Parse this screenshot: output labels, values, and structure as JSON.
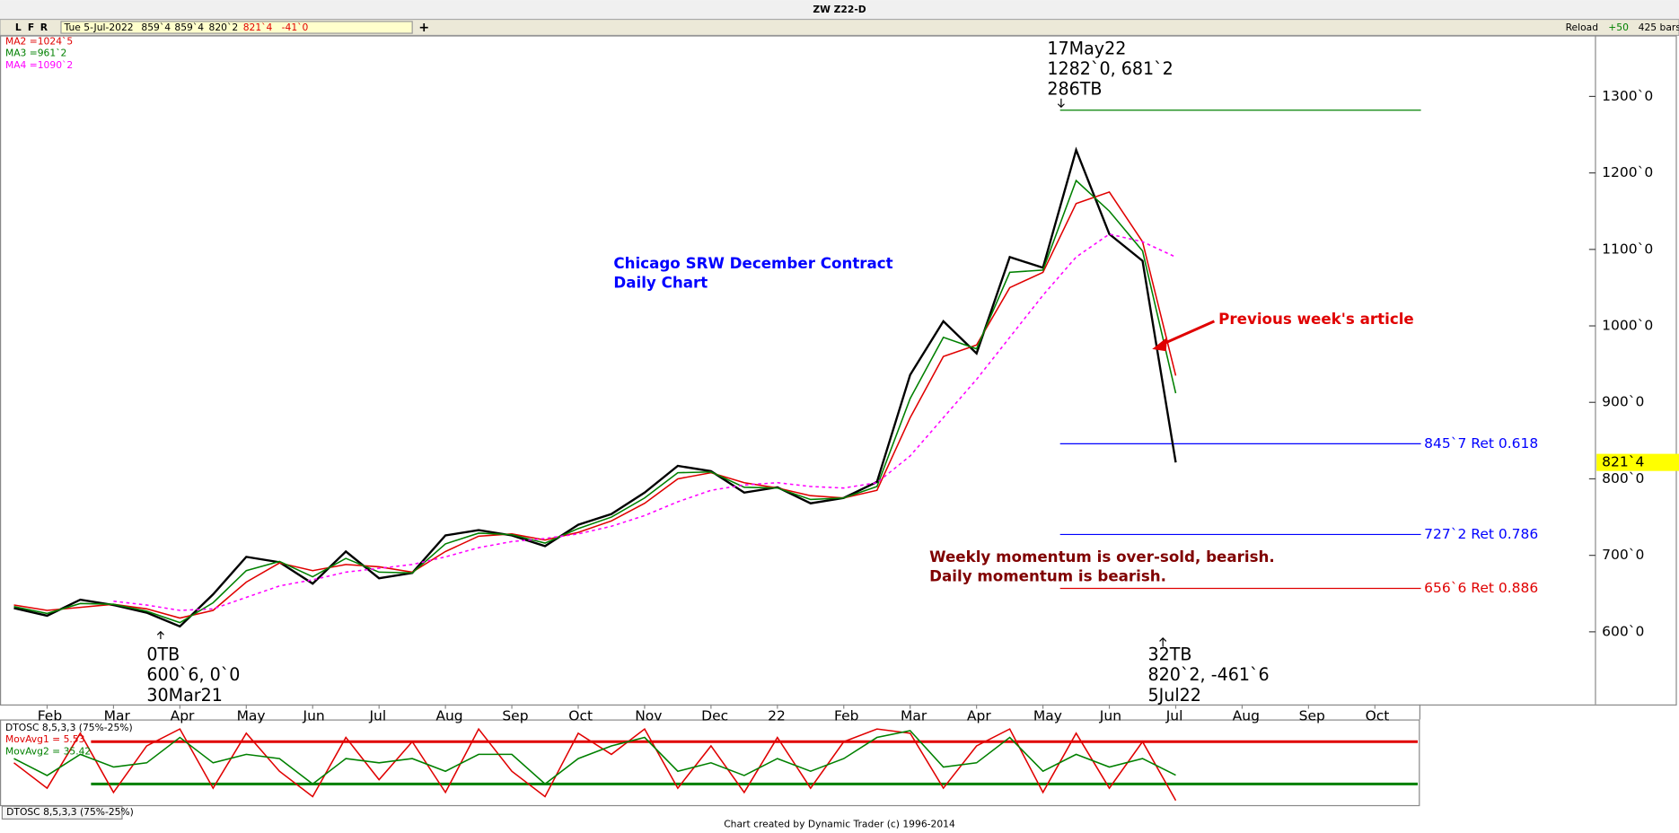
{
  "header": {
    "title": "ZW Z22-D",
    "buttons": [
      "L",
      "F",
      "R"
    ],
    "quote": [
      {
        "text": "Tue 5-Jul-2022",
        "color": "#000000"
      },
      {
        "text": "859`4",
        "color": "#000000"
      },
      {
        "text": "859`4",
        "color": "#000000"
      },
      {
        "text": "820`2",
        "color": "#000000"
      },
      {
        "text": "821`4",
        "color": "#e00000"
      },
      {
        "text": "-41`0",
        "color": "#e00000"
      }
    ],
    "add": "+",
    "reload": "Reload",
    "bars_step": "+50",
    "bars": "425 bars"
  },
  "chart_data": [
    {
      "type": "line",
      "categories": [
        null,
        "Feb",
        null,
        "Mar",
        null,
        "Apr",
        null,
        "May",
        null,
        "Jun",
        null,
        "Jul",
        null,
        "Aug",
        null,
        "Sep",
        null,
        "Oct",
        null,
        "Nov",
        null,
        "Dec",
        null,
        "22",
        null,
        "Feb",
        null,
        "Mar",
        null,
        "Apr",
        null,
        "May",
        null,
        "Jun",
        null,
        "Jul",
        null,
        "Aug",
        null,
        "Sep",
        null,
        "Oct",
        null
      ],
      "series": [
        {
          "color": "#000000",
          "values": [
            631,
            621,
            642,
            635,
            625,
            607,
            649,
            698,
            691,
            663,
            705,
            670,
            677,
            726,
            733,
            726,
            712,
            740,
            754,
            782,
            817,
            810,
            782,
            789,
            768,
            775,
            796,
            936,
            1006,
            964,
            1090,
            1076,
            1230,
            1120,
            1085,
            821.5,
            null,
            null,
            null,
            null,
            null,
            null,
            null
          ]
        },
        {
          "name": "MA2 =1024`5",
          "color": "#e00000",
          "values": [
            635,
            628,
            632,
            636,
            630,
            618,
            628,
            665,
            690,
            680,
            688,
            685,
            678,
            705,
            725,
            728,
            720,
            730,
            745,
            768,
            800,
            808,
            795,
            788,
            778,
            775,
            785,
            880,
            960,
            975,
            1050,
            1070,
            1160,
            1175,
            1110,
            935,
            null,
            null,
            null,
            null,
            null,
            null,
            null
          ]
        },
        {
          "name": "MA3 =961`2",
          "color": "#008000",
          "values": [
            633,
            624,
            637,
            636,
            627,
            612,
            638,
            680,
            692,
            672,
            696,
            678,
            677,
            715,
            729,
            727,
            716,
            735,
            750,
            775,
            808,
            809,
            789,
            788,
            773,
            775,
            790,
            905,
            985,
            970,
            1070,
            1073,
            1190,
            1150,
            1098,
            912,
            null,
            null,
            null,
            null,
            null,
            null,
            null
          ]
        },
        {
          "name": "MA4 =1090`2",
          "color": "#ff00ff",
          "dash": true,
          "values": [
            null,
            null,
            null,
            640,
            635,
            628,
            630,
            645,
            660,
            668,
            678,
            683,
            688,
            698,
            710,
            718,
            722,
            728,
            738,
            752,
            770,
            785,
            792,
            795,
            790,
            788,
            795,
            830,
            880,
            930,
            985,
            1040,
            1090,
            1120,
            1110,
            1090,
            null,
            null,
            null,
            null,
            null,
            null,
            null
          ]
        }
      ],
      "ylim": [
        505,
        1377
      ],
      "yticks": [
        {
          "value": 600,
          "label": "600`0"
        },
        {
          "value": 700,
          "label": "700`0"
        },
        {
          "value": 800,
          "label": "800`0"
        },
        {
          "value": 900,
          "label": "900`0"
        },
        {
          "value": 1000,
          "label": "1000`0"
        },
        {
          "value": 1100,
          "label": "1100`0"
        },
        {
          "value": 1200,
          "label": "1200`0"
        },
        {
          "value": 1300,
          "label": "1300`0"
        }
      ],
      "last": {
        "value": 821.5,
        "label": "821`4"
      },
      "levels": [
        {
          "value": 1282,
          "color": "#008000"
        },
        {
          "value": 845.875,
          "label": "845`7 Ret 0.618",
          "color": "#0000ff"
        },
        {
          "value": 727.25,
          "label": "727`2 Ret 0.786",
          "color": "#0000ff"
        },
        {
          "value": 656.75,
          "label": "656`6 Ret 0.886",
          "color": "#e00000"
        }
      ],
      "pivots": [
        {
          "lines": [
            "17May22",
            "1282`0, 681`2",
            "286TB"
          ]
        },
        {
          "lines": [
            "0TB",
            "600`6, 0`0",
            "30Mar21"
          ]
        },
        {
          "lines": [
            "32TB",
            "820`2, -461`6",
            "5Jul22"
          ]
        }
      ],
      "notes": [
        {
          "lines": [
            "Chicago SRW December Contract",
            "Daily Chart"
          ],
          "color": "#0000ff"
        },
        {
          "lines": [
            "Previous week's article"
          ],
          "color": "#e00000"
        },
        {
          "lines": [
            "Weekly momentum is over-sold, bearish.",
            "Daily momentum is bearish."
          ],
          "color": "#800000"
        }
      ]
    },
    {
      "type": "line",
      "title": "DTOSC 8,5,3,3 (75%-25%)",
      "series": [
        {
          "name": "MovAvg1 = 5.53",
          "color": "#e00000",
          "values": [
            50,
            20,
            85,
            15,
            70,
            90,
            20,
            85,
            40,
            10,
            80,
            30,
            75,
            15,
            90,
            40,
            10,
            85,
            60,
            90,
            20,
            70,
            15,
            80,
            20,
            75,
            90,
            85,
            20,
            70,
            90,
            15,
            85,
            20,
            75,
            5.53,
            null,
            null,
            null,
            null,
            null,
            null,
            null
          ]
        },
        {
          "name": "MovAvg2 = 35.42",
          "color": "#008000",
          "values": [
            55,
            35,
            60,
            45,
            50,
            80,
            50,
            60,
            55,
            25,
            55,
            50,
            55,
            40,
            60,
            60,
            25,
            55,
            70,
            80,
            40,
            50,
            35,
            55,
            40,
            55,
            80,
            88,
            45,
            50,
            80,
            40,
            60,
            45,
            55,
            35.42,
            null,
            null,
            null,
            null,
            null,
            null,
            null
          ]
        }
      ],
      "ylim": [
        0,
        100
      ],
      "levels": [
        {
          "value": 75,
          "color": "#e00000"
        },
        {
          "value": 25,
          "color": "#008000"
        }
      ]
    }
  ],
  "footer": {
    "credit": "Chart created by Dynamic Trader  (c)  1996-2014",
    "tab": "DTOSC 8,5,3,3 (75%-25%)"
  }
}
